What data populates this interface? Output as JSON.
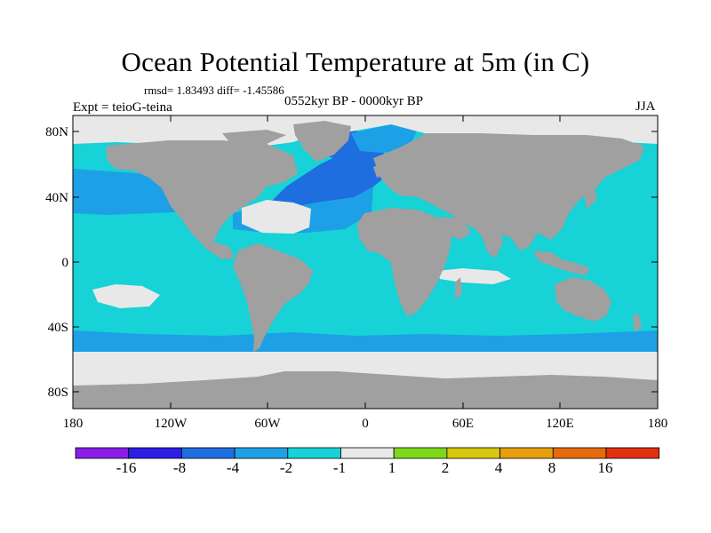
{
  "title": "Ocean Potential Temperature at 5m (in C)",
  "stats_text": "rmsd= 1.83493 diff= -1.45586",
  "experiment_label": "Expt = teioG-teina",
  "period_label": "0552kyr BP - 0000kyr BP",
  "season_label": "JJA",
  "lat_ticks": [
    "80N",
    "40N",
    "0",
    "40S",
    "80S"
  ],
  "lon_ticks": [
    "180",
    "120W",
    "60W",
    "0",
    "60E",
    "120E",
    "180"
  ],
  "colorbar": {
    "labels": [
      "-16",
      "-8",
      "-4",
      "-2",
      "-1",
      "1",
      "2",
      "4",
      "8",
      "16"
    ],
    "colors": [
      "#8a1ee6",
      "#2d1ee6",
      "#1e6ee0",
      "#1ea0e6",
      "#17d2d6",
      "#e8e8e8",
      "#7dd81a",
      "#d6c80e",
      "#e6a00e",
      "#e66a0e",
      "#e0300e"
    ]
  },
  "colors": {
    "land": "#a0a0a0",
    "ocean_default": "#17d2d6",
    "ocean_moderate_cool": "#1ea0e6",
    "ocean_strong_cool": "#1e6ee0",
    "near_zero": "#e8e8e8"
  }
}
